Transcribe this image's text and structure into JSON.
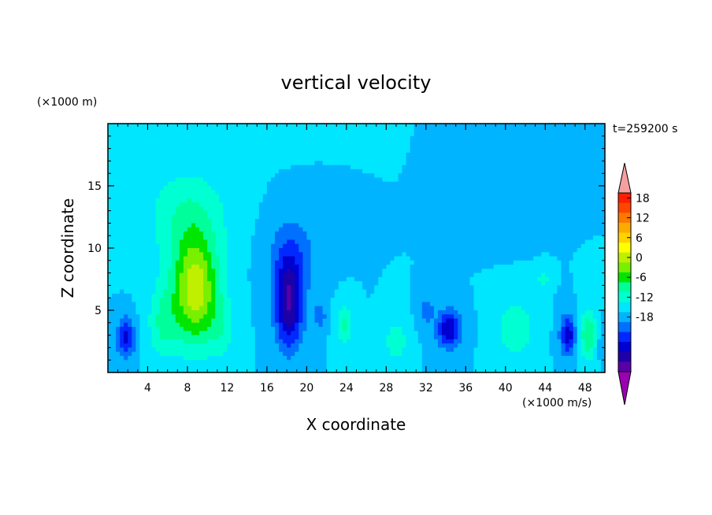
{
  "chart_data": {
    "type": "heatmap",
    "title": "vertical velocity",
    "xlabel": "X coordinate",
    "ylabel": "Z coordinate",
    "x_unit_note": "(×1000 m/s)",
    "y_unit_note": "(×1000 m)",
    "time_label": "t=259200 s",
    "xlim": [
      0,
      50
    ],
    "ylim": [
      0,
      20
    ],
    "x_ticks": [
      4,
      8,
      12,
      16,
      20,
      24,
      28,
      32,
      36,
      40,
      44,
      48
    ],
    "y_ticks": [
      5,
      10,
      15
    ],
    "colorbar": {
      "tick_labels": [
        "18",
        "12",
        "6",
        "0",
        "-6",
        "-12",
        "-18"
      ],
      "tick_values": [
        18,
        12,
        6,
        0,
        -6,
        -12,
        -18
      ],
      "levels_min": -21,
      "levels_max": 21,
      "level_step": 3,
      "colors": [
        "#9b00b3",
        "#5a00a8",
        "#1e00a8",
        "#0000d0",
        "#0028ff",
        "#0070ff",
        "#00b4ff",
        "#00e6ff",
        "#00ffd2",
        "#00ff9b",
        "#00e600",
        "#78f000",
        "#bff000",
        "#ffff00",
        "#ffd200",
        "#ffaa00",
        "#ff7800",
        "#ff4600",
        "#ff1e00",
        "#f5a0a0"
      ],
      "over_color": "#f5a0a0",
      "under_color": "#9b00b3"
    },
    "features": [
      {
        "x": 8.8,
        "z": 6.5,
        "sx": 2.3,
        "sz": 4.2,
        "amp": 17
      },
      {
        "x": 8.0,
        "z": 12.5,
        "sx": 4.0,
        "sz": 3.8,
        "amp": 6
      },
      {
        "x": 5.5,
        "z": 4.0,
        "sx": 1.5,
        "sz": 3.0,
        "amp": 6
      },
      {
        "x": 11.5,
        "z": 3.5,
        "sx": 1.2,
        "sz": 2.5,
        "amp": 4
      },
      {
        "x": 1.8,
        "z": 2.8,
        "sx": 0.9,
        "sz": 1.6,
        "amp": -10
      },
      {
        "x": 18.2,
        "z": 5.5,
        "sx": 1.4,
        "sz": 3.5,
        "amp": -15
      },
      {
        "x": 18.5,
        "z": 9.5,
        "sx": 2.5,
        "sz": 3.0,
        "amp": -5
      },
      {
        "x": 21.3,
        "z": 4.5,
        "sx": 0.7,
        "sz": 1.0,
        "amp": -5
      },
      {
        "x": 23.8,
        "z": 3.8,
        "sx": 0.8,
        "sz": 1.6,
        "amp": 7
      },
      {
        "x": 29.0,
        "z": 2.5,
        "sx": 1.0,
        "sz": 1.6,
        "amp": 6
      },
      {
        "x": 34.3,
        "z": 3.5,
        "sx": 1.2,
        "sz": 1.5,
        "amp": -12
      },
      {
        "x": 32.0,
        "z": 5.0,
        "sx": 0.7,
        "sz": 1.0,
        "amp": -6
      },
      {
        "x": 41.0,
        "z": 3.5,
        "sx": 1.8,
        "sz": 2.2,
        "amp": 6
      },
      {
        "x": 43.8,
        "z": 7.5,
        "sx": 0.6,
        "sz": 0.8,
        "amp": 5
      },
      {
        "x": 46.3,
        "z": 3.0,
        "sx": 0.8,
        "sz": 1.6,
        "amp": -11
      },
      {
        "x": 48.3,
        "z": 3.0,
        "sx": 0.9,
        "sz": 2.0,
        "amp": 9
      },
      {
        "x": 40.0,
        "z": 14.5,
        "sx": 2.5,
        "sz": 2.5,
        "amp": -3
      },
      {
        "x": 50.0,
        "z": 2.5,
        "sx": 1.0,
        "sz": 1.5,
        "amp": -3
      },
      {
        "x": 10.0,
        "z": 18.5,
        "sx": 5.0,
        "sz": 1.5,
        "amp": 2
      }
    ]
  }
}
